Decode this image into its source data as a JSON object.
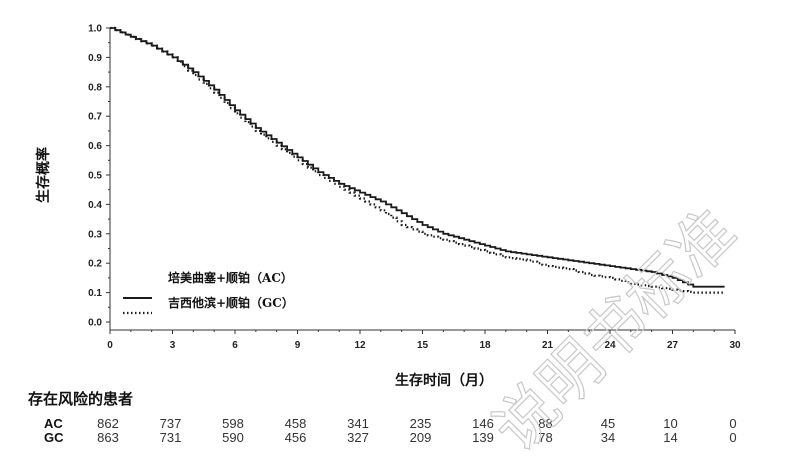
{
  "chart_data": {
    "type": "line",
    "subtype": "kaplan-meier",
    "title": "",
    "xlabel": "生存时间（月）",
    "ylabel": "生存概率",
    "xlim": [
      0,
      30
    ],
    "ylim": [
      0,
      1.0
    ],
    "x_ticks": [
      0,
      3,
      6,
      9,
      12,
      15,
      18,
      21,
      24,
      27,
      30
    ],
    "y_ticks": [
      0.0,
      0.1,
      0.2,
      0.3,
      0.4,
      0.5,
      0.6,
      0.7,
      0.8,
      0.9,
      1.0
    ],
    "grid": false,
    "legend_position": "lower-left",
    "series": [
      {
        "name": "培美曲塞+顺铂（AC）",
        "short": "AC",
        "style": "solid",
        "x": [
          0,
          1,
          2,
          3,
          4,
          5,
          6,
          7,
          8,
          9,
          10,
          11,
          12,
          13,
          14,
          15,
          16,
          17,
          18,
          19,
          20,
          21,
          22,
          23,
          24,
          25,
          26,
          27,
          28,
          29.5
        ],
        "y": [
          1.0,
          0.97,
          0.94,
          0.9,
          0.85,
          0.79,
          0.72,
          0.66,
          0.61,
          0.56,
          0.51,
          0.47,
          0.44,
          0.41,
          0.37,
          0.33,
          0.3,
          0.28,
          0.26,
          0.24,
          0.23,
          0.22,
          0.21,
          0.2,
          0.19,
          0.18,
          0.17,
          0.15,
          0.12,
          0.12
        ]
      },
      {
        "name": "吉西他滨+顺铂（GC）",
        "short": "GC",
        "style": "dotted",
        "x": [
          0,
          1,
          2,
          3,
          4,
          5,
          6,
          7,
          8,
          9,
          10,
          11,
          12,
          13,
          14,
          15,
          16,
          17,
          18,
          19,
          20,
          21,
          22,
          23,
          24,
          25,
          26,
          27,
          28,
          29.5
        ],
        "y": [
          1.0,
          0.97,
          0.94,
          0.9,
          0.84,
          0.78,
          0.71,
          0.65,
          0.6,
          0.55,
          0.5,
          0.46,
          0.42,
          0.38,
          0.33,
          0.3,
          0.28,
          0.26,
          0.24,
          0.22,
          0.21,
          0.19,
          0.18,
          0.16,
          0.15,
          0.13,
          0.12,
          0.11,
          0.1,
          0.1
        ]
      }
    ],
    "risk_table": {
      "title": "存在风险的患者",
      "times": [
        0,
        3,
        6,
        9,
        12,
        15,
        18,
        21,
        24,
        27,
        30
      ],
      "rows": [
        {
          "label": "AC",
          "values": [
            862,
            737,
            598,
            458,
            341,
            235,
            146,
            88,
            45,
            10,
            0
          ]
        },
        {
          "label": "GC",
          "values": [
            863,
            731,
            590,
            456,
            327,
            209,
            139,
            78,
            34,
            14,
            0
          ]
        }
      ]
    }
  },
  "legend": {
    "ac_label": "培美曲塞+顺铂（AC）",
    "gc_label": "吉西他滨+顺铂（GC）"
  },
  "axes": {
    "xlabel": "生存时间（月）",
    "ylabel": "生存概率"
  },
  "risk": {
    "title": "存在风险的患者"
  },
  "watermark": {
    "text": "说明书标准"
  },
  "colors": {
    "line": "#1a1a1a",
    "axis": "#333333",
    "watermark": "#c8c8c8"
  }
}
